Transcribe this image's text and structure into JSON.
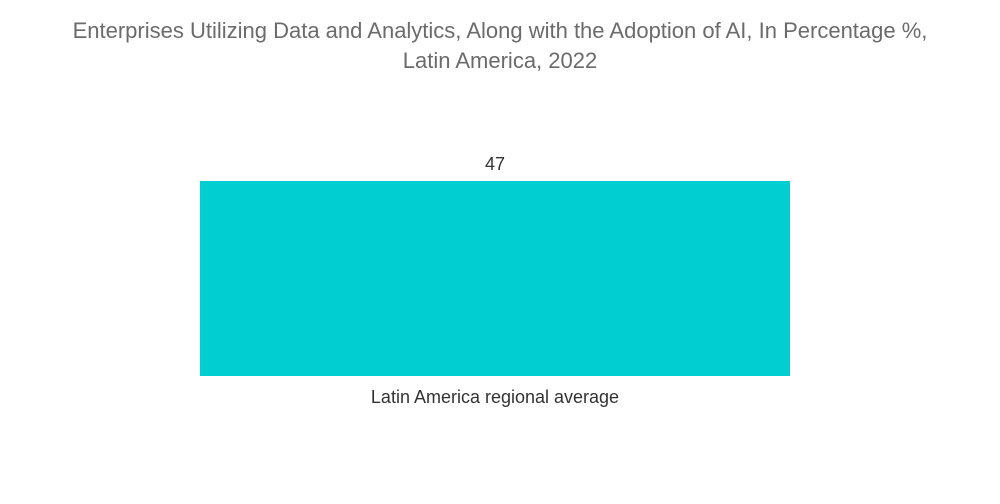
{
  "title": {
    "line1": "Enterprises Utilizing Data and Analytics, Along with the Adoption of AI, In Percentage %,",
    "line2": "Latin America, 2022"
  },
  "colors": {
    "bar": "#00ced1"
  },
  "chart_data": {
    "type": "bar",
    "title": "Enterprises Utilizing Data and Analytics, Along with the Adoption of AI, In Percentage %, Latin America, 2022",
    "categories": [
      "Latin America regional average"
    ],
    "values": [
      47
    ],
    "data_labels": [
      "47"
    ],
    "xlabel": "",
    "ylabel": "",
    "ylim": [
      0,
      47
    ],
    "grid": false,
    "legend": "none"
  }
}
